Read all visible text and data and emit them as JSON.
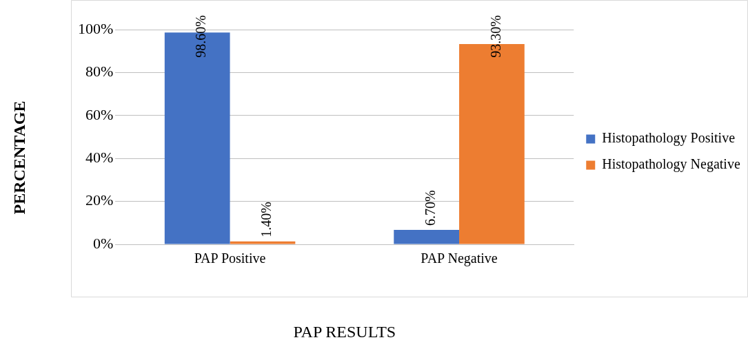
{
  "chart_data": {
    "type": "bar",
    "xlabel": "PAP RESULTS",
    "ylabel": "PERCENTAGE",
    "categories": [
      "PAP Positive",
      "PAP Negative"
    ],
    "series": [
      {
        "name": "Histopathology Positive",
        "color": "#4472c4",
        "values": [
          98.6,
          6.7
        ],
        "value_labels": [
          "98.60%",
          "6.70%"
        ]
      },
      {
        "name": "Histopathology Negative",
        "color": "#ed7d31",
        "values": [
          1.4,
          93.3
        ],
        "value_labels": [
          "1.40%",
          "93.30%"
        ]
      }
    ],
    "ylim": [
      0,
      100
    ],
    "yticks": [
      {
        "value": 0,
        "label": "0%"
      },
      {
        "value": 20,
        "label": "20%"
      },
      {
        "value": 40,
        "label": "40%"
      },
      {
        "value": 60,
        "label": "60%"
      },
      {
        "value": 80,
        "label": "80%"
      },
      {
        "value": 100,
        "label": "100%"
      }
    ],
    "grid": "y",
    "legend": "right"
  }
}
